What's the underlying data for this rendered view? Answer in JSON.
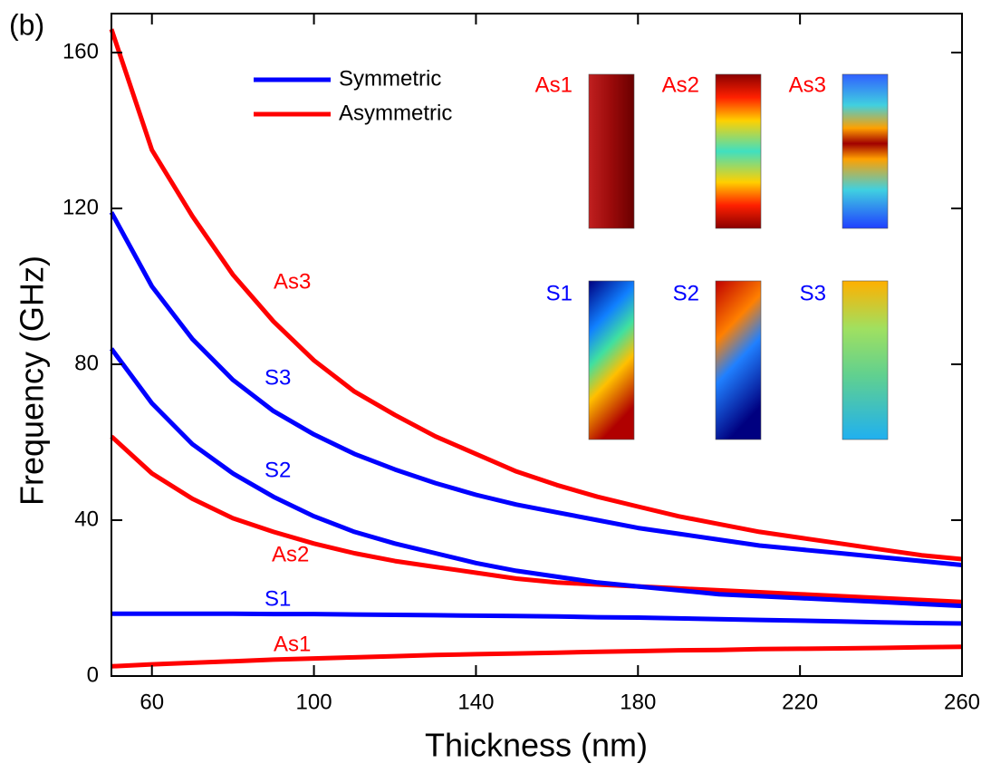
{
  "chart_data": {
    "type": "line",
    "panel_label": "(b)",
    "xlabel": "Thickness (nm)",
    "ylabel": "Frequency (GHz)",
    "x": [
      50,
      60,
      70,
      80,
      90,
      100,
      110,
      120,
      130,
      140,
      150,
      160,
      170,
      180,
      190,
      200,
      210,
      220,
      230,
      240,
      250,
      260
    ],
    "series": [
      {
        "name": "As1",
        "color": "#ff0000",
        "values": [
          2.5,
          3,
          3.4,
          3.8,
          4.2,
          4.5,
          4.8,
          5.1,
          5.4,
          5.6,
          5.8,
          6,
          6.2,
          6.4,
          6.6,
          6.7,
          6.9,
          7,
          7.1,
          7.2,
          7.4,
          7.5
        ]
      },
      {
        "name": "S1",
        "color": "#0000ff",
        "values": [
          16,
          16,
          16,
          16,
          15.9,
          15.9,
          15.8,
          15.7,
          15.6,
          15.5,
          15.4,
          15.3,
          15.1,
          15,
          14.8,
          14.6,
          14.4,
          14.2,
          14,
          13.8,
          13.6,
          13.5
        ]
      },
      {
        "name": "As2",
        "color": "#ff0000",
        "values": [
          61.5,
          52,
          45.5,
          40.5,
          37,
          34,
          31.5,
          29.5,
          28,
          26.5,
          25,
          24,
          23.5,
          23,
          22.5,
          22,
          21.5,
          21,
          20.5,
          20,
          19.5,
          19
        ]
      },
      {
        "name": "S2",
        "color": "#0000ff",
        "values": [
          84,
          70,
          59.5,
          52,
          46,
          41,
          37,
          34,
          31.5,
          29,
          27,
          25.5,
          24,
          23,
          22,
          21,
          20.5,
          20,
          19.5,
          19,
          18.5,
          18
        ]
      },
      {
        "name": "S3",
        "color": "#0000ff",
        "values": [
          119,
          100,
          86.5,
          76,
          68,
          62,
          57,
          53,
          49.5,
          46.5,
          44,
          42,
          40,
          38,
          36.5,
          35,
          33.5,
          32.5,
          31.5,
          30.5,
          29.5,
          28.5
        ]
      },
      {
        "name": "As3",
        "color": "#ff0000",
        "values": [
          166,
          135,
          118,
          103,
          91,
          81,
          73,
          67,
          61.5,
          57,
          52.5,
          49,
          46,
          43.5,
          41,
          39,
          37,
          35.5,
          34,
          32.5,
          31,
          30
        ]
      }
    ],
    "legend": [
      {
        "name": "Symmetric",
        "color": "#0000ff"
      },
      {
        "name": "Asymmetric",
        "color": "#ff0000"
      }
    ],
    "xlim": [
      50,
      260
    ],
    "xticks": [
      60,
      100,
      140,
      180,
      220,
      260
    ],
    "ylim": [
      0,
      170
    ],
    "yticks": [
      0,
      40,
      80,
      120,
      160
    ]
  }
}
